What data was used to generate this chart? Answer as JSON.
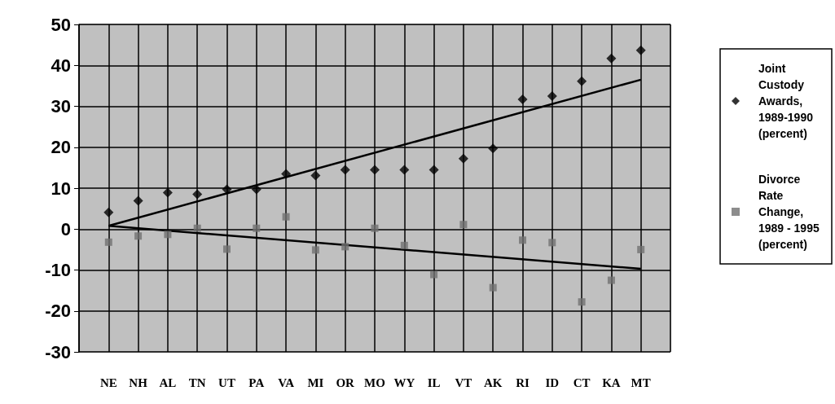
{
  "chart_data": {
    "type": "scatter",
    "categories": [
      "NE",
      "NH",
      "AL",
      "TN",
      "UT",
      "PA",
      "VA",
      "MI",
      "OR",
      "MO",
      "WY",
      "IL",
      "VT",
      "AK",
      "RI",
      "ID",
      "CT",
      "KA",
      "MT"
    ],
    "series": [
      {
        "name": "Joint Custody Awards, 1989-1990 (percent)",
        "color": "#000000",
        "marker": "diamond",
        "values": [
          4.1,
          6.9,
          8.9,
          8.5,
          9.7,
          9.7,
          13.5,
          13.1,
          14.5,
          14.5,
          14.5,
          14.5,
          17.2,
          19.7,
          31.7,
          32.5,
          36.1,
          41.7,
          43.7
        ]
      },
      {
        "name": "Divorce Rate Change, 1989 - 1995 (percent)",
        "color": "#707070",
        "marker": "square",
        "values": [
          -3.2,
          -1.7,
          -1.3,
          0.2,
          -4.9,
          0.2,
          3,
          -5.1,
          -4.3,
          0.2,
          -4,
          -11.1,
          1.1,
          -14.3,
          -2.7,
          -3.3,
          -17.8,
          -12.5,
          -5
        ]
      },
      {
        "type": "line",
        "color": "#000000",
        "marker": "none",
        "line_style": "solid",
        "x": [
          "NE",
          "MT"
        ],
        "values": [
          0.8,
          36.5
        ]
      },
      {
        "type": "line",
        "color": "#000000",
        "marker": "none",
        "line_style": "solid",
        "x": [
          "NE",
          "MT"
        ],
        "values": [
          0.8,
          -9.7
        ]
      }
    ],
    "ylim": [
      -30,
      50
    ],
    "yticks": [
      -30,
      -20,
      -10,
      0,
      10,
      20,
      30,
      40,
      50
    ],
    "grid": true,
    "legend": "right"
  }
}
